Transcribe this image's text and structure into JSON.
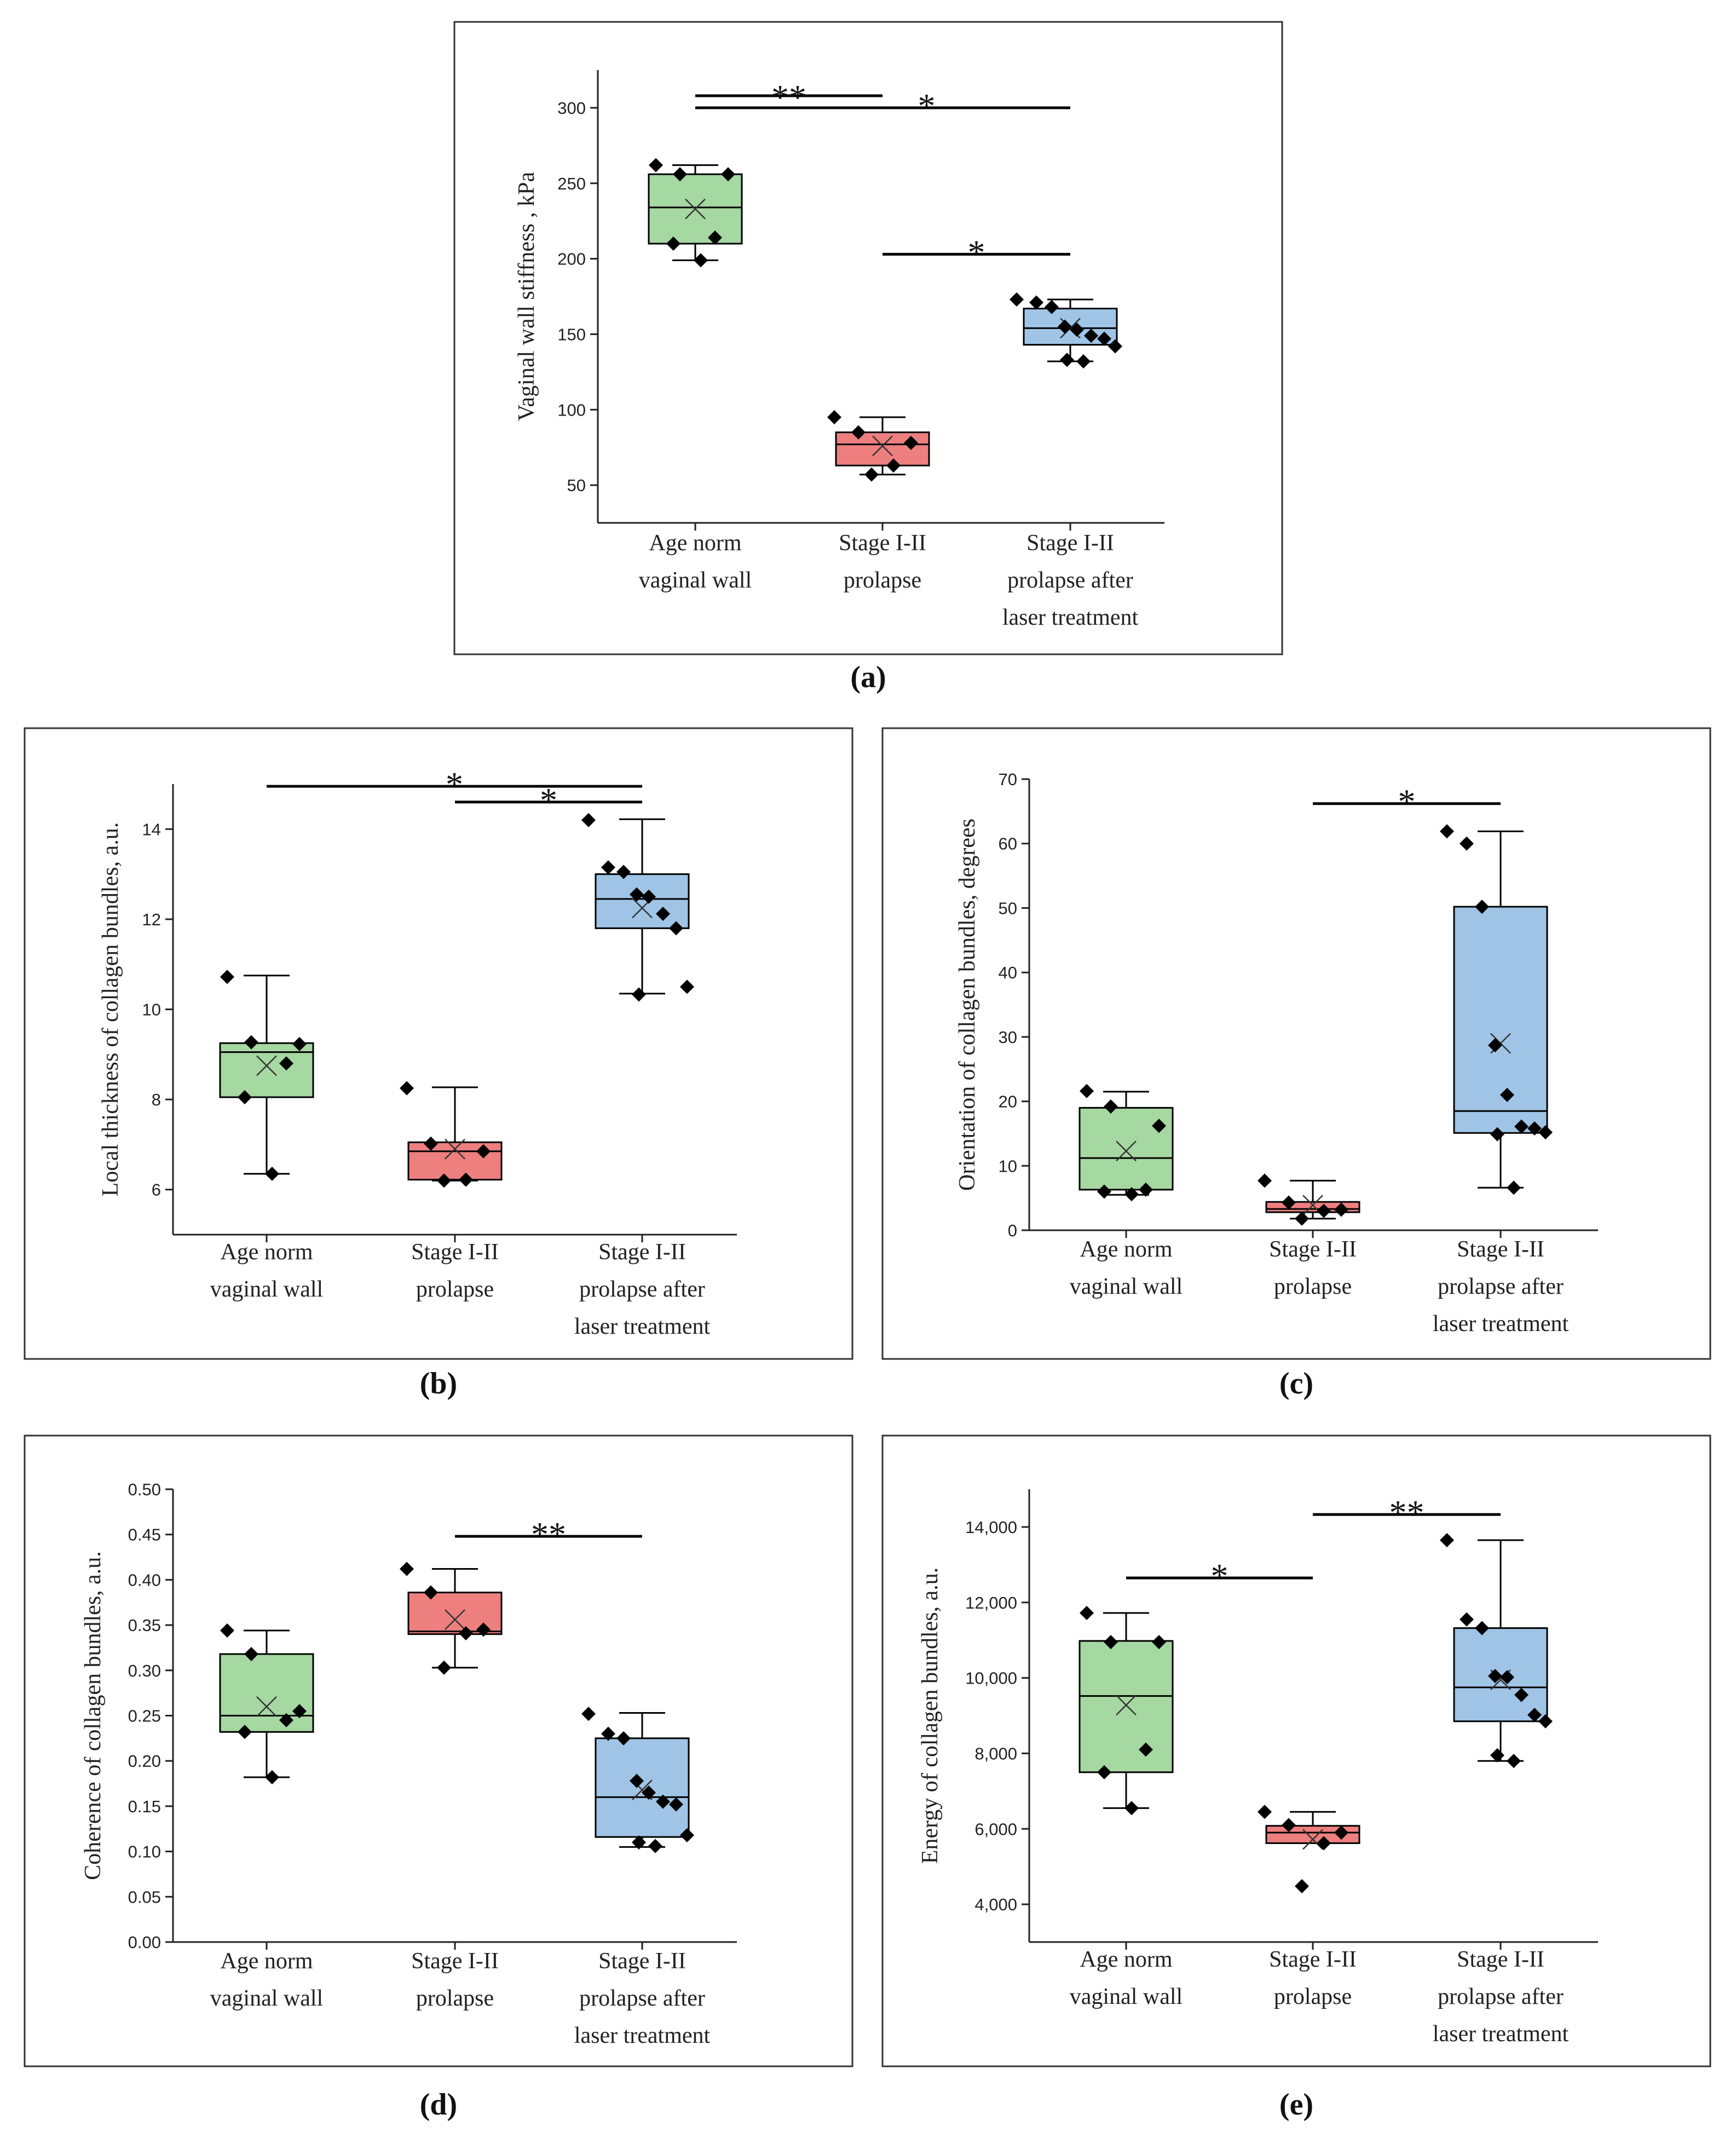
{
  "figure": {
    "categories": [
      "Age norm vaginal wall",
      "Stage I-II prolapse",
      "Stage I-II prolapse after laser treatment"
    ]
  },
  "colors": {
    "green": "#a6d8a2",
    "red": "#ee7f7f",
    "blue": "#9fc4e6",
    "line": "#000000"
  },
  "chart_data": [
    {
      "id": "a",
      "label": "(a)",
      "type": "box",
      "ylabel": "Vaginal wall stiffness , kPa",
      "ylim": [
        25,
        325
      ],
      "yticks": [
        50,
        100,
        150,
        200,
        250,
        300
      ],
      "tick_labels": [
        "50",
        "100",
        "150",
        "200",
        "250",
        "300"
      ],
      "categories": [
        [
          "Age norm",
          "vaginal wall"
        ],
        [
          "Stage I-II",
          "prolapse"
        ],
        [
          "Stage I-II",
          "prolapse after",
          "laser treatment"
        ]
      ],
      "boxes": [
        {
          "color": "green",
          "whisker_low": 199,
          "q1": 210,
          "median": 234,
          "q3": 256,
          "whisker_high": 262,
          "mean": 233,
          "points": [
            262,
            256,
            256,
            214,
            210,
            199
          ]
        },
        {
          "color": "red",
          "whisker_low": 57,
          "q1": 63,
          "median": 77,
          "q3": 85,
          "whisker_high": 95,
          "mean": 76,
          "points": [
            95,
            85,
            78,
            63,
            57
          ]
        },
        {
          "color": "blue",
          "whisker_low": 132,
          "q1": 143,
          "median": 154,
          "q3": 167,
          "whisker_high": 173,
          "mean": 154,
          "points": [
            173,
            171,
            168,
            155,
            153,
            149,
            147,
            142,
            133,
            132
          ]
        }
      ],
      "significance": [
        {
          "from": 0,
          "to": 1,
          "y": 308,
          "label": "**"
        },
        {
          "from": 0,
          "to": 2,
          "y": 300,
          "label": "*"
        },
        {
          "from": 1,
          "to": 2,
          "y": 203,
          "label": "*"
        }
      ]
    },
    {
      "id": "b",
      "label": "(b)",
      "type": "box",
      "ylabel": "Local thickness of collagen bundles, a.u.",
      "ylim": [
        5,
        15
      ],
      "yticks": [
        6,
        8,
        10,
        12,
        14
      ],
      "tick_labels": [
        "6",
        "8",
        "10",
        "12",
        "14"
      ],
      "categories": [
        [
          "Age norm",
          "vaginal wall"
        ],
        [
          "Stage I-II",
          "prolapse"
        ],
        [
          "Stage I-II",
          "prolapse after",
          "laser treatment"
        ]
      ],
      "boxes": [
        {
          "color": "green",
          "whisker_low": 6.35,
          "q1": 8.05,
          "median": 9.05,
          "q3": 9.25,
          "whisker_high": 10.75,
          "mean": 8.75,
          "points": [
            10.72,
            9.27,
            9.23,
            8.8,
            8.05,
            6.35
          ]
        },
        {
          "color": "red",
          "whisker_low": 6.2,
          "q1": 6.22,
          "median": 6.85,
          "q3": 7.05,
          "whisker_high": 8.27,
          "mean": 6.9,
          "points": [
            8.25,
            7.02,
            6.85,
            6.22,
            6.2
          ]
        },
        {
          "color": "blue",
          "whisker_low": 10.35,
          "q1": 11.8,
          "median": 12.45,
          "q3": 13.0,
          "whisker_high": 14.22,
          "mean": 12.25,
          "points": [
            14.2,
            13.15,
            13.05,
            12.55,
            12.5,
            12.12,
            11.8,
            10.5,
            10.33
          ]
        }
      ],
      "significance": [
        {
          "from": 0,
          "to": 2,
          "y": 14.95,
          "label": "*"
        },
        {
          "from": 1,
          "to": 2,
          "y": 14.6,
          "label": "*"
        }
      ]
    },
    {
      "id": "c",
      "label": "(c)",
      "type": "box",
      "ylabel": "Orientation of collagen bundles, degrees",
      "ylim": [
        0,
        70
      ],
      "yticks": [
        0,
        10,
        20,
        30,
        40,
        50,
        60,
        70
      ],
      "tick_labels": [
        "0",
        "10",
        "20",
        "30",
        "40",
        "50",
        "60",
        "70"
      ],
      "categories": [
        [
          "Age norm",
          "vaginal wall"
        ],
        [
          "Stage I-II",
          "prolapse"
        ],
        [
          "Stage I-II",
          "prolapse after",
          "laser treatment"
        ]
      ],
      "boxes": [
        {
          "color": "green",
          "whisker_low": 5.5,
          "q1": 6.3,
          "median": 11.2,
          "q3": 19.0,
          "whisker_high": 21.5,
          "mean": 12.3,
          "points": [
            21.6,
            19.2,
            16.2,
            6.3,
            6.0,
            5.6
          ]
        },
        {
          "color": "red",
          "whisker_low": 1.8,
          "q1": 2.8,
          "median": 3.3,
          "q3": 4.4,
          "whisker_high": 7.7,
          "mean": 3.9,
          "points": [
            7.7,
            4.3,
            3.2,
            3.0,
            1.8
          ]
        },
        {
          "color": "blue",
          "whisker_low": 6.6,
          "q1": 15.1,
          "median": 18.5,
          "q3": 50.2,
          "whisker_high": 61.9,
          "mean": 29.0,
          "points": [
            61.9,
            60.0,
            50.2,
            28.7,
            21.0,
            16.1,
            15.8,
            15.2,
            14.9,
            6.6
          ]
        }
      ],
      "significance": [
        {
          "from": 1,
          "to": 2,
          "y": 66.2,
          "label": "*"
        }
      ]
    },
    {
      "id": "d",
      "label": "(d)",
      "type": "box",
      "ylabel": "Coherence of collagen bundles, a.u.",
      "ylim": [
        0,
        0.5
      ],
      "yticks": [
        0,
        0.05,
        0.1,
        0.15,
        0.2,
        0.25,
        0.3,
        0.35,
        0.4,
        0.45,
        0.5
      ],
      "tick_labels": [
        "0.00",
        "0.05",
        "0.10",
        "0.15",
        "0.20",
        "0.25",
        "0.30",
        "0.35",
        "0.40",
        "0.45",
        "0.50"
      ],
      "categories": [
        [
          "Age norm",
          "vaginal wall"
        ],
        [
          "Stage I-II",
          "prolapse"
        ],
        [
          "Stage I-II",
          "prolapse after",
          "laser treatment"
        ]
      ],
      "boxes": [
        {
          "color": "green",
          "whisker_low": 0.182,
          "q1": 0.232,
          "median": 0.25,
          "q3": 0.318,
          "whisker_high": 0.344,
          "mean": 0.26,
          "points": [
            0.344,
            0.318,
            0.255,
            0.245,
            0.232,
            0.182
          ]
        },
        {
          "color": "red",
          "whisker_low": 0.303,
          "q1": 0.34,
          "median": 0.343,
          "q3": 0.386,
          "whisker_high": 0.412,
          "mean": 0.356,
          "points": [
            0.412,
            0.386,
            0.345,
            0.341,
            0.303
          ]
        },
        {
          "color": "blue",
          "whisker_low": 0.105,
          "q1": 0.116,
          "median": 0.16,
          "q3": 0.225,
          "whisker_high": 0.253,
          "mean": 0.168,
          "points": [
            0.252,
            0.23,
            0.225,
            0.178,
            0.165,
            0.155,
            0.152,
            0.118,
            0.11,
            0.106
          ]
        }
      ],
      "significance": [
        {
          "from": 1,
          "to": 2,
          "y": 0.448,
          "label": "**"
        }
      ]
    },
    {
      "id": "e",
      "label": "(e)",
      "type": "box",
      "ylabel": "Energy of collagen bundles, a.u.",
      "ylim": [
        3000,
        15000
      ],
      "yticks": [
        4000,
        6000,
        8000,
        10000,
        12000,
        14000
      ],
      "tick_labels": [
        "4,000",
        "6,000",
        "8,000",
        "10,000",
        "12,000",
        "14,000"
      ],
      "categories": [
        [
          "Age norm",
          "vaginal wall"
        ],
        [
          "Stage I-II",
          "prolapse"
        ],
        [
          "Stage I-II",
          "prolapse after",
          "laser treatment"
        ]
      ],
      "boxes": [
        {
          "color": "green",
          "whisker_low": 6550,
          "q1": 7500,
          "median": 9520,
          "q3": 10980,
          "whisker_high": 11720,
          "mean": 9280,
          "points": [
            11720,
            10950,
            10950,
            8100,
            7500,
            6550
          ]
        },
        {
          "color": "red",
          "whisker_low": 5620,
          "q1": 5620,
          "median": 5900,
          "q3": 6080,
          "whisker_high": 6450,
          "mean": 5720,
          "points": [
            6450,
            6100,
            5900,
            5620,
            4480
          ]
        },
        {
          "color": "blue",
          "whisker_low": 7800,
          "q1": 8850,
          "median": 9750,
          "q3": 11320,
          "whisker_high": 13650,
          "mean": 9950,
          "points": [
            13650,
            11550,
            11320,
            10050,
            10020,
            9550,
            9020,
            8850,
            7950,
            7800
          ]
        }
      ],
      "significance": [
        {
          "from": 0,
          "to": 1,
          "y": 12650,
          "label": "*"
        },
        {
          "from": 1,
          "to": 2,
          "y": 14330,
          "label": "**"
        }
      ]
    }
  ]
}
